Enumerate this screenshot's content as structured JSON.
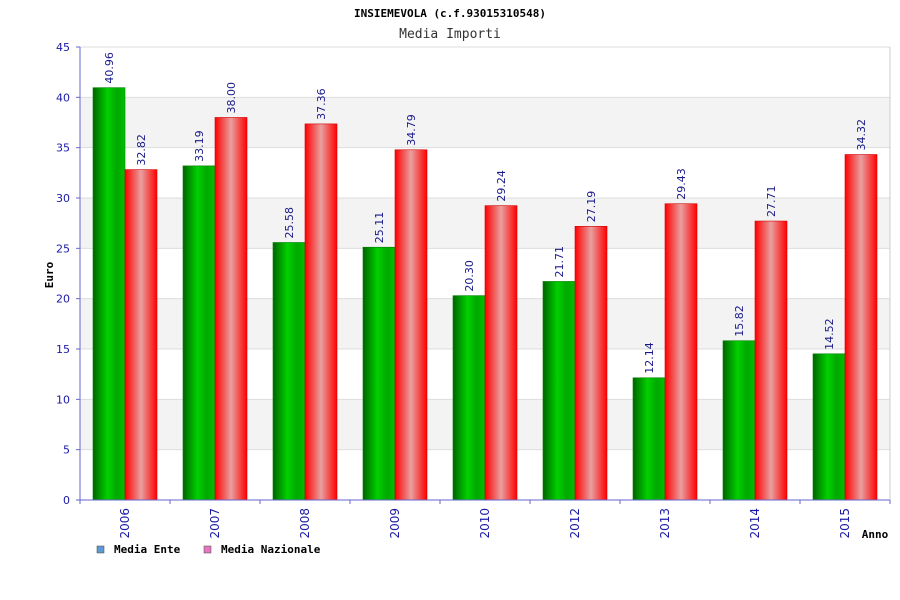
{
  "chart_data": {
    "type": "bar",
    "title": "INSIEMEVOLA (c.f.93015310548)",
    "subtitle": "Media Importi",
    "xlabel": "Anno",
    "ylabel": "Euro",
    "ylim": [
      0,
      45
    ],
    "yticks": [
      0,
      5,
      10,
      15,
      20,
      25,
      30,
      35,
      40,
      45
    ],
    "categories": [
      "2006",
      "2007",
      "2008",
      "2009",
      "2010",
      "2012",
      "2013",
      "2014",
      "2015"
    ],
    "series": [
      {
        "name": "Media Ente",
        "color": "#00b400",
        "legend_color": "#5b9bd5",
        "values": [
          40.96,
          33.19,
          25.58,
          25.11,
          20.3,
          21.71,
          12.14,
          15.82,
          14.52
        ],
        "labels": [
          "40.96",
          "33.19",
          "25.58",
          "25.11",
          "20.30",
          "21.71",
          "12.14",
          "15.82",
          "14.52"
        ]
      },
      {
        "name": "Media Nazionale",
        "color": "#ff1a1a",
        "legend_color": "#e377c2",
        "values": [
          32.82,
          38.0,
          37.36,
          34.79,
          29.24,
          27.19,
          29.43,
          27.71,
          34.32
        ],
        "labels": [
          "32.82",
          "38.00",
          "37.36",
          "34.79",
          "29.24",
          "27.19",
          "29.43",
          "27.71",
          "34.32"
        ]
      }
    ],
    "grid": true,
    "legend_position": "bottom-left"
  }
}
